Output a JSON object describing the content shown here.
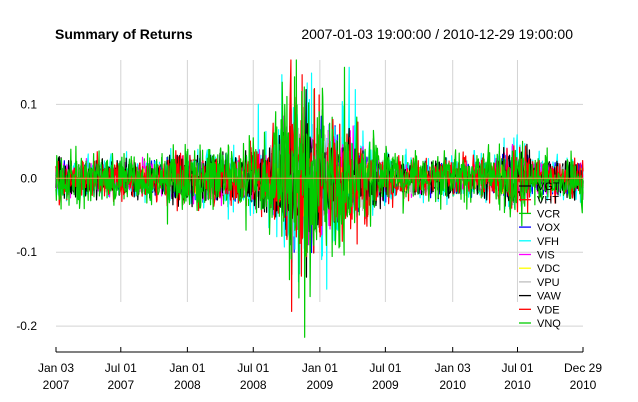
{
  "chart_data": {
    "type": "line",
    "title": "Summary of Returns",
    "date_range_label": "2007-01-03 19:00:00 / 2010-12-29 19:00:00",
    "x_ticks": [
      {
        "date": "2007-01-03",
        "line1": "Jan 03",
        "line2": "2007"
      },
      {
        "date": "2007-07-01",
        "line1": "Jul 01",
        "line2": "2007"
      },
      {
        "date": "2008-01-01",
        "line1": "Jan 01",
        "line2": "2008"
      },
      {
        "date": "2008-07-01",
        "line1": "Jul 01",
        "line2": "2008"
      },
      {
        "date": "2009-01-01",
        "line1": "Jan 01",
        "line2": "2009"
      },
      {
        "date": "2009-07-01",
        "line1": "Jul 01",
        "line2": "2009"
      },
      {
        "date": "2010-01-03",
        "line1": "Jan 03",
        "line2": "2010"
      },
      {
        "date": "2010-07-01",
        "line1": "Jul 01",
        "line2": "2010"
      },
      {
        "date": "2010-12-29",
        "line1": "Dec 29",
        "line2": "2010"
      }
    ],
    "y_ticks": [
      0.1,
      0.0,
      -0.1,
      -0.2
    ],
    "y_tick_labels": [
      "0.1",
      "0.0",
      "-0.1",
      "-0.2"
    ],
    "xlim": [
      "2007-01-03",
      "2010-12-29"
    ],
    "ylim": [
      -0.235,
      0.16
    ],
    "grid": true,
    "legend_position": "bottom-right",
    "series": [
      {
        "name": "VGT",
        "color": "#000000",
        "volatility": 0.014,
        "points": [
          [
            "2008-10-10",
            -0.09
          ],
          [
            "2008-10-13",
            0.11
          ]
        ]
      },
      {
        "name": "VHT",
        "color": "#ff0000",
        "volatility": 0.011,
        "points": [
          [
            "2008-10-13",
            0.1
          ],
          [
            "2008-11-20",
            -0.08
          ]
        ]
      },
      {
        "name": "VCR",
        "color": "#00cc00",
        "volatility": 0.016,
        "points": [
          [
            "2008-09-01",
            0.09
          ],
          [
            "2008-11-20",
            -0.13
          ],
          [
            "2008-12-16",
            0.12
          ]
        ]
      },
      {
        "name": "VOX",
        "color": "#0000ff",
        "volatility": 0.015,
        "points": [
          [
            "2008-10-13",
            0.1
          ],
          [
            "2008-10-22",
            -0.1
          ]
        ]
      },
      {
        "name": "VFH",
        "color": "#00ffff",
        "volatility": 0.022,
        "points": [
          [
            "2008-07-15",
            0.1
          ],
          [
            "2008-09-18",
            0.14
          ],
          [
            "2008-10-15",
            -0.12
          ],
          [
            "2009-01-20",
            -0.15
          ],
          [
            "2009-03-23",
            0.15
          ],
          [
            "2009-04-09",
            0.12
          ]
        ]
      },
      {
        "name": "VIS",
        "color": "#ff00ff",
        "volatility": 0.016,
        "points": [
          [
            "2008-10-13",
            0.11
          ],
          [
            "2008-12-01",
            -0.09
          ]
        ]
      },
      {
        "name": "VDC",
        "color": "#ffff00",
        "volatility": 0.009,
        "points": [
          [
            "2008-10-13",
            0.07
          ]
        ]
      },
      {
        "name": "VPU",
        "color": "#bebebe",
        "volatility": 0.012,
        "points": [
          [
            "2008-10-13",
            0.09
          ]
        ]
      },
      {
        "name": "VAW",
        "color": "#000000",
        "volatility": 0.018,
        "points": [
          [
            "2008-10-15",
            -0.13
          ],
          [
            "2008-11-24",
            0.12
          ]
        ]
      },
      {
        "name": "VDE",
        "color": "#ff0000",
        "volatility": 0.02,
        "points": [
          [
            "2008-10-13",
            0.16
          ],
          [
            "2008-10-15",
            -0.18
          ],
          [
            "2008-11-13",
            0.14
          ]
        ]
      },
      {
        "name": "VNQ",
        "color": "#00cc00",
        "volatility": 0.025,
        "points": [
          [
            "2008-09-19",
            0.13
          ],
          [
            "2008-10-28",
            0.16
          ],
          [
            "2008-11-20",
            -0.215
          ],
          [
            "2008-12-05",
            -0.16
          ],
          [
            "2009-01-09",
            0.11
          ],
          [
            "2009-03-10",
            0.15
          ]
        ]
      }
    ]
  }
}
